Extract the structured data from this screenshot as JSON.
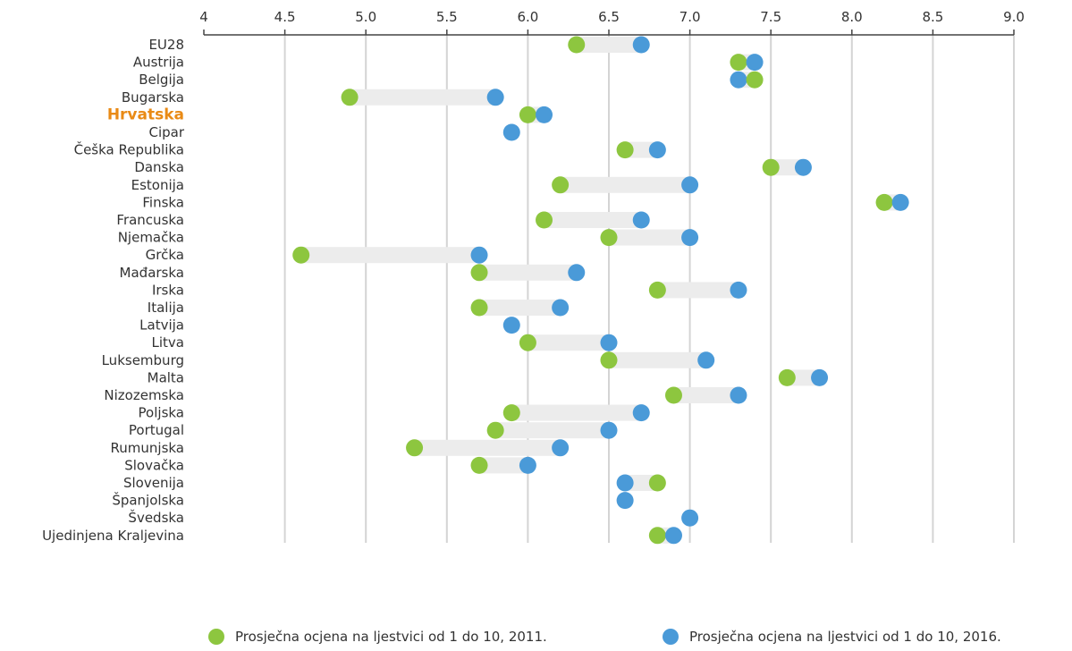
{
  "chart_data": {
    "type": "dumbbell",
    "xlim": [
      4,
      9
    ],
    "x_ticks": [
      "4",
      "4.5",
      "5.0",
      "5.5",
      "6.0",
      "6.5",
      "7.0",
      "7.5",
      "8.0",
      "8.5",
      "9.0"
    ],
    "grid": "vertical",
    "legend_position": "bottom",
    "highlight_category": "Hrvatska",
    "highlight_color": "#e98a15",
    "categories": [
      "EU28",
      "Austrija",
      "Belgija",
      "Bugarska",
      "Hrvatska",
      "Cipar",
      "Češka Republika",
      "Danska",
      "Estonija",
      "Finska",
      "Francuska",
      "Njemačka",
      "Grčka",
      "Mađarska",
      "Irska",
      "Italija",
      "Latvija",
      "Litva",
      "Luksemburg",
      "Malta",
      "Nizozemska",
      "Poljska",
      "Portugal",
      "Rumunjska",
      "Slovačka",
      "Slovenija",
      "Španjolska",
      "Švedska",
      "Ujedinjena Kraljevina"
    ],
    "series": [
      {
        "name": "Prosječna ocjena na ljestvici od 1 do 10, 2011.",
        "color": "#8dc63f",
        "values": [
          6.3,
          7.3,
          7.4,
          4.9,
          6.0,
          null,
          6.6,
          7.5,
          6.2,
          8.2,
          6.1,
          6.5,
          4.6,
          5.7,
          6.8,
          5.7,
          null,
          6.0,
          6.5,
          7.6,
          6.9,
          5.9,
          5.8,
          5.3,
          5.7,
          6.8,
          null,
          null,
          6.8
        ]
      },
      {
        "name": "Prosječna ocjena na ljestvici od 1 do 10, 2016.",
        "color": "#4a9ad8",
        "values": [
          6.7,
          7.4,
          7.3,
          5.8,
          6.1,
          5.9,
          6.8,
          7.7,
          7.0,
          8.3,
          6.7,
          7.0,
          5.7,
          6.3,
          7.3,
          6.2,
          5.9,
          6.5,
          7.1,
          7.8,
          7.3,
          6.7,
          6.5,
          6.2,
          6.0,
          6.6,
          6.6,
          7.0,
          6.9
        ]
      }
    ]
  }
}
